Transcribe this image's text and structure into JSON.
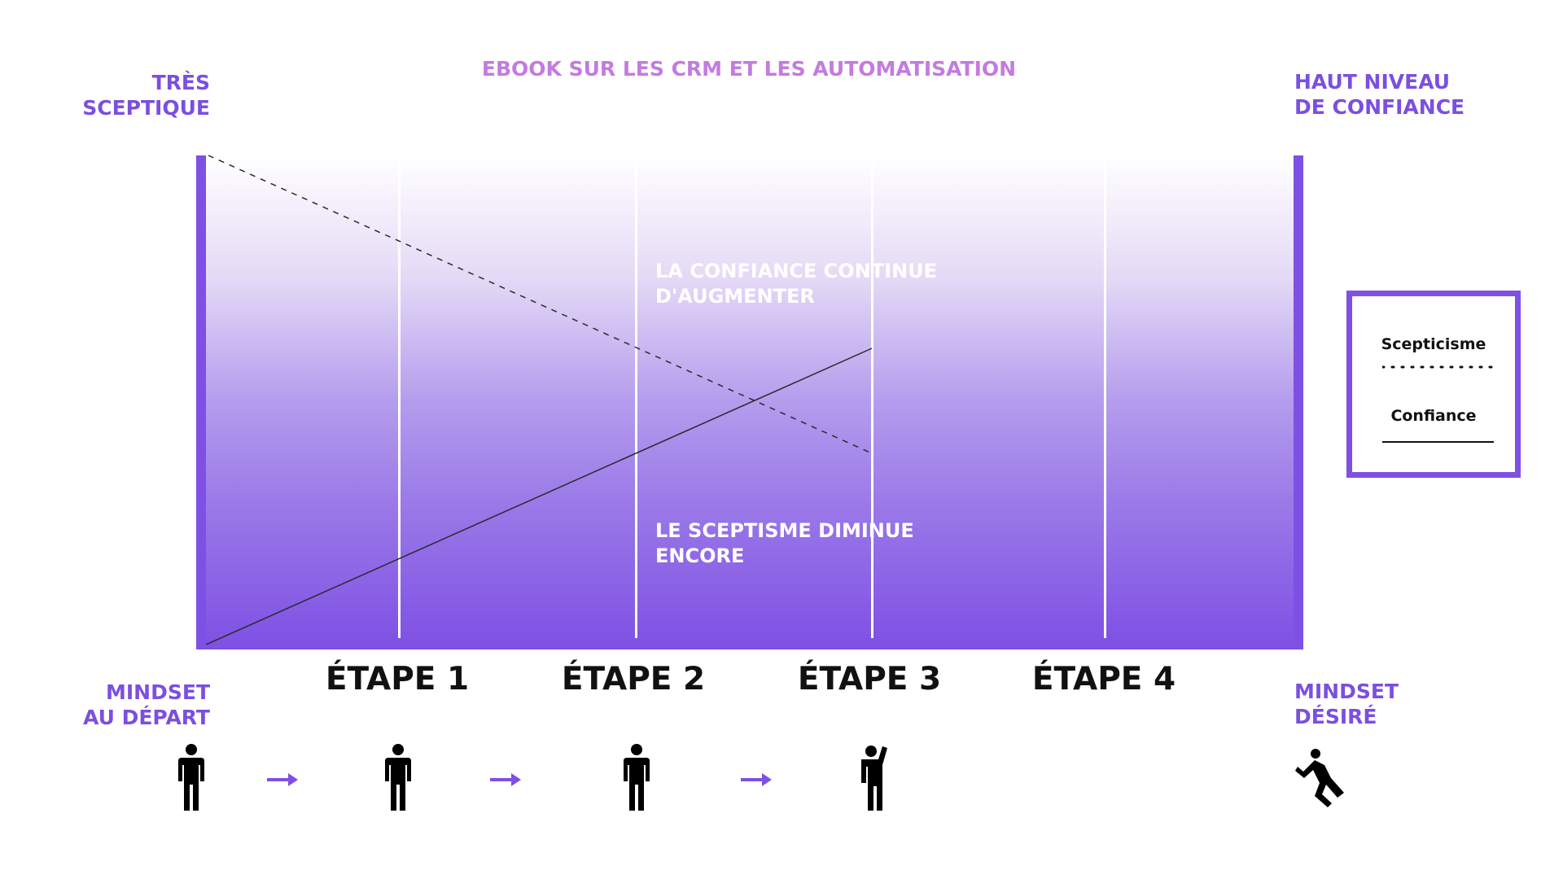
{
  "title": "EBOOK SUR LES CRM ET LES AUTOMATISATION",
  "top_left_label": [
    "TRÈS",
    "SCEPTIQUE"
  ],
  "top_right_label": [
    "HAUT NIVEAU",
    "DE CONFIANCE"
  ],
  "bottom_left_label": [
    "MINDSET",
    "AU DÉPART"
  ],
  "bottom_right_label": [
    "MINDSET",
    "DÉSIRÉ"
  ],
  "panel_notes": {
    "confidence": [
      "LA CONFIANCE CONTINUE",
      "D'AUGMENTER"
    ],
    "skepticism": [
      "LE SCEPTISME DIMINUE",
      "ENCORE"
    ]
  },
  "steps": [
    "ÉTAPE 1",
    "ÉTAPE 2",
    "ÉTAPE 3",
    "ÉTAPE 4"
  ],
  "legend": {
    "skepticism": "Scepticisme",
    "confidence": "Confiance"
  },
  "figures": [
    "standing-person-icon",
    "standing-person-icon",
    "standing-person-icon",
    "waving-person-icon",
    "jumping-person-icon"
  ],
  "colors": {
    "accent": "#7e50e4",
    "title": "#c37be0",
    "text": "#111111"
  }
}
